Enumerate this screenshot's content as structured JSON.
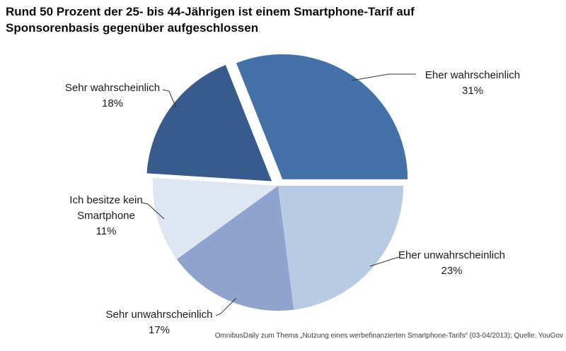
{
  "title_lines": [
    "Rund 50 Prozent der 25- bis 44-Jährigen ist einem Smartphone-Tarif auf",
    "Sponsorenbasis gegenüber aufgeschlossen"
  ],
  "footer": "OmnibusDaily zum Thema „Nutzung eines werbefinanzierten Smartphone-Tarifs“ (03-04/2013); Quelle: YouGov",
  "chart_data": {
    "type": "pie",
    "title": "Rund 50 Prozent der 25- bis 44-Jährigen ist einem Smartphone-Tarif auf Sponsorenbasis gegenüber aufgeschlossen",
    "source": "OmnibusDaily zum Thema „Nutzung eines werbefinanzierten Smartphone-Tarifs“ (03-04/2013); Quelle: YouGov",
    "start_angle_deg": -21.6,
    "legend_position": "callout-labels",
    "slices": [
      {
        "label": "Eher wahrscheinlich",
        "value": 31,
        "pct_label": "31%",
        "color": "#4472a8",
        "exploded": true
      },
      {
        "label": "Eher unwahrscheinlich",
        "value": 23,
        "pct_label": "23%",
        "color": "#b7cbe3",
        "exploded": false
      },
      {
        "label": "Sehr unwahrscheinlich",
        "value": 17,
        "pct_label": "17%",
        "color": "#8ea4ce",
        "exploded": false
      },
      {
        "label": "Ich besitze kein Smartphone",
        "value": 11,
        "pct_label": "11%",
        "color": "#dde6f1",
        "exploded": false
      },
      {
        "label": "Sehr wahrscheinlich",
        "value": 18,
        "pct_label": "18%",
        "color": "#375b8c",
        "exploded": true
      }
    ],
    "leader_line_color": "#333333",
    "background_color": "#ffffff"
  }
}
